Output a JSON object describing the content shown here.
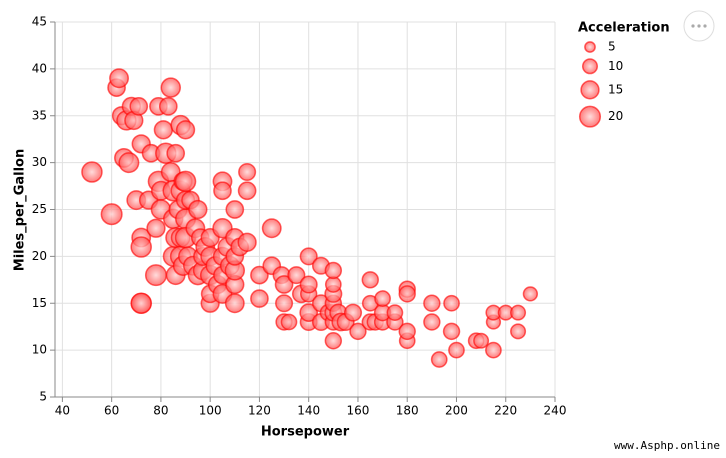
{
  "chart_data": {
    "type": "scatter",
    "x_label": "Horsepower",
    "y_label": "Miles_per_Gallon",
    "xlim": [
      37,
      240
    ],
    "xticks": [
      40,
      60,
      80,
      100,
      120,
      140,
      160,
      180,
      200,
      220,
      240
    ],
    "ylim": [
      5,
      45
    ],
    "yticks": [
      5,
      10,
      15,
      20,
      25,
      30,
      35,
      40,
      45
    ],
    "grid": true,
    "color": "red",
    "legend": {
      "title": "Acceleration",
      "values": [
        5,
        10,
        15,
        20
      ],
      "position": "right"
    },
    "x": [
      52,
      60,
      62,
      63,
      64,
      65,
      66,
      67,
      68,
      69,
      70,
      71,
      72,
      72,
      72,
      72,
      72,
      75,
      76,
      78,
      78,
      79,
      79,
      80,
      80,
      81,
      82,
      83,
      84,
      84,
      85,
      85,
      85,
      86,
      86,
      86,
      87,
      88,
      88,
      88,
      88,
      89,
      89,
      90,
      90,
      90,
      90,
      90,
      91,
      92,
      93,
      94,
      95,
      95,
      96,
      97,
      97,
      98,
      100,
      100,
      100,
      100,
      100,
      102,
      103,
      105,
      105,
      105,
      105,
      105,
      105,
      107,
      108,
      110,
      110,
      110,
      110,
      110,
      110,
      112,
      115,
      115,
      115,
      120,
      120,
      125,
      125,
      129,
      130,
      130,
      130,
      135,
      137,
      140,
      140,
      140,
      140,
      140,
      145,
      145,
      145,
      148,
      150,
      150,
      150,
      150,
      150,
      150,
      152,
      153,
      155,
      158,
      160,
      165,
      165,
      165,
      167,
      170,
      170,
      170,
      175,
      175,
      180,
      180,
      180,
      180,
      190,
      190,
      193,
      198,
      198,
      200,
      208,
      210,
      215,
      215,
      215,
      220,
      225,
      225,
      230,
      150,
      132
    ],
    "values": [
      29,
      24.5,
      38,
      39,
      35,
      30.5,
      34.5,
      30,
      36,
      34.5,
      26,
      36,
      15,
      15,
      32,
      22,
      21,
      26,
      31,
      18,
      23,
      28,
      36,
      27,
      25,
      33.5,
      31,
      36,
      38,
      29,
      27,
      24,
      20,
      18,
      31,
      22,
      25,
      27,
      20,
      34,
      22,
      28,
      19,
      24,
      28,
      26,
      33.5,
      22,
      20,
      26,
      19,
      23,
      18,
      25,
      22,
      18.5,
      20,
      21,
      15,
      16,
      18,
      20,
      22,
      19,
      17,
      16,
      28,
      18,
      20,
      23,
      27,
      21,
      19,
      15,
      17,
      18.5,
      20,
      22,
      25,
      21,
      21.5,
      27,
      29,
      18,
      15.5,
      23,
      19,
      18,
      13,
      15,
      17,
      18,
      16,
      13,
      14,
      16,
      17,
      20,
      13,
      15,
      19,
      14,
      13,
      14,
      15,
      16,
      17,
      18.5,
      14,
      13,
      13,
      14,
      12,
      13,
      15,
      17.5,
      13,
      13,
      14,
      15.5,
      13,
      14,
      11,
      12,
      16.5,
      16,
      13,
      15,
      9,
      12,
      15,
      10,
      11,
      11,
      13,
      14,
      10,
      14,
      14,
      12,
      16,
      11,
      13
    ],
    "sizes": [
      19,
      20,
      14,
      16,
      15,
      16,
      17,
      18,
      15,
      15,
      16,
      14,
      18,
      19,
      15,
      16,
      19,
      15,
      14,
      20,
      15,
      19,
      14,
      16,
      17,
      15,
      19,
      14,
      17,
      16,
      19,
      17,
      18,
      16,
      14,
      18,
      15,
      17,
      19,
      17,
      16,
      15,
      17,
      18,
      19,
      15,
      15,
      19,
      16,
      14,
      16,
      16,
      17,
      15,
      14,
      16,
      15,
      16,
      15,
      14,
      17,
      16,
      15,
      15,
      15,
      16,
      16,
      14,
      15,
      17,
      14,
      16,
      16,
      16,
      15,
      17,
      14,
      15,
      14,
      14,
      15,
      14,
      13,
      14,
      14,
      16,
      14,
      13,
      12,
      13,
      14,
      13,
      14,
      13,
      14,
      12,
      13,
      13,
      13,
      13,
      13,
      12,
      12,
      13,
      12,
      13,
      11,
      12,
      13,
      14,
      13,
      13,
      12,
      12,
      11,
      12,
      12,
      12,
      12,
      11,
      12,
      11,
      11,
      12,
      12,
      12,
      12,
      12,
      11,
      12,
      11,
      11,
      11,
      10,
      9,
      10,
      11,
      10,
      10,
      10,
      9,
      12,
      11
    ]
  },
  "watermark": "www.Asphp.online"
}
